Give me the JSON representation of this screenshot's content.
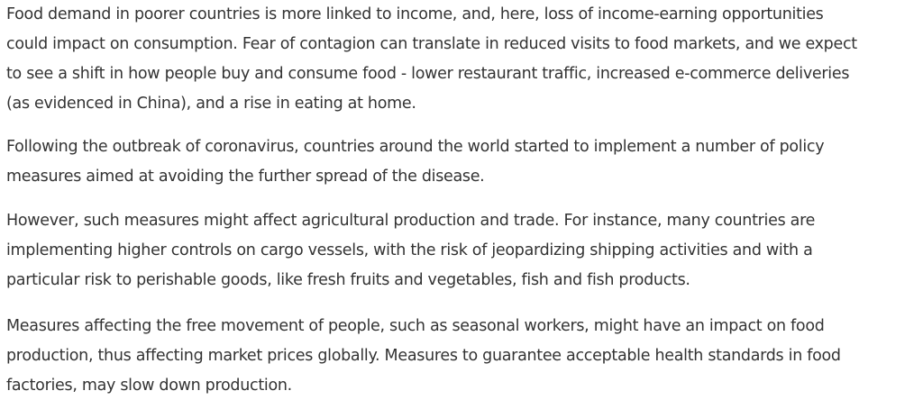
{
  "article": {
    "paragraphs": [
      {
        "lines": [
          "Food demand in poorer countries is more linked to income, and, here, loss of income-earning opportunities",
          "could impact on consumption. Fear of contagion can translate in reduced visits to food markets, and we expect",
          "to see a shift in how people buy and consume food - lower restaurant traffic, increased e-commerce deliveries",
          "(as evidenced in China), and a rise in eating at home."
        ]
      },
      {
        "lines": [
          "Following the outbreak of coronavirus, countries around the world started to implement a number of policy",
          "measures aimed at avoiding the further spread of the disease."
        ]
      },
      {
        "lines": [
          "However, such measures might affect agricultural production and trade. For instance, many countries are",
          "implementing higher controls on cargo vessels, with the risk of jeopardizing shipping activities and with a",
          "particular risk to perishable goods, like fresh fruits and vegetables, fish and fish products."
        ]
      },
      {
        "lines": [
          "Measures affecting the free movement of people, such as seasonal workers, might have an impact on food",
          "production, thus affecting market prices globally. Measures to guarantee acceptable health standards in food",
          "factories, may slow down production."
        ]
      }
    ]
  }
}
